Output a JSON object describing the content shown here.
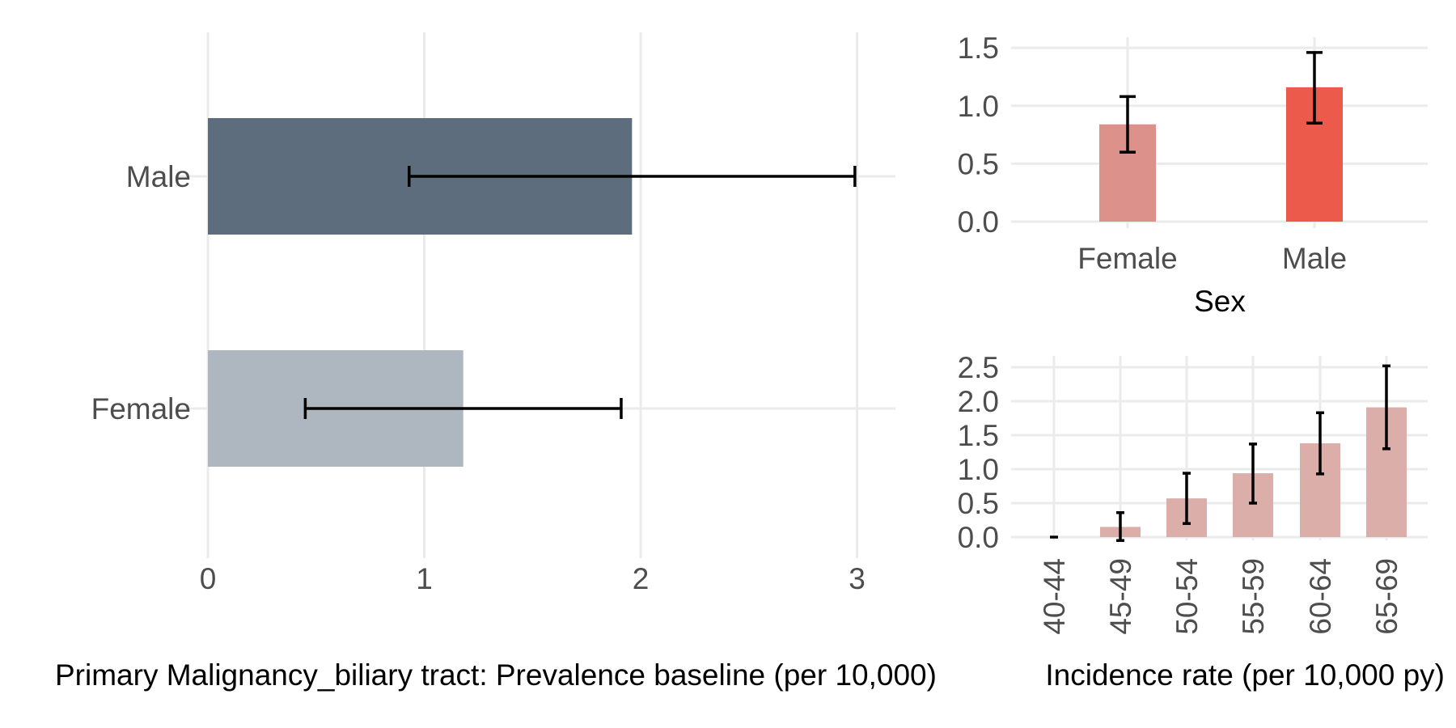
{
  "colors": {
    "prev_male": "#5d6d7e",
    "prev_female": "#aeb6bf",
    "sex_female": "#dc918a",
    "sex_male": "#eb5a4b",
    "age_bars": "#dcaeaa",
    "error_bar": "#000000",
    "grid": "#ebebeb"
  },
  "chart_data": [
    {
      "type": "bar",
      "orientation": "horizontal",
      "title": "",
      "xlabel": "Primary Malignancy_biliary tract: Prevalence baseline (per 10,000)",
      "ylabel": "",
      "categories": [
        "Female",
        "Male"
      ],
      "values": [
        1.18,
        1.96
      ],
      "ci_low": [
        0.45,
        0.93
      ],
      "ci_high": [
        1.91,
        2.99
      ],
      "xlim": [
        0,
        3.14
      ],
      "xticks": [
        "0",
        "1",
        "2",
        "3"
      ],
      "grid": true,
      "legend": "none"
    },
    {
      "type": "bar",
      "title": "",
      "xlabel": "Sex",
      "ylabel": "",
      "categories": [
        "Female",
        "Male"
      ],
      "values": [
        0.84,
        1.16
      ],
      "ci_low": [
        0.6,
        0.85
      ],
      "ci_high": [
        1.08,
        1.46
      ],
      "ylim": [
        0,
        1.55
      ],
      "yticks": [
        "0.0",
        "0.5",
        "1.0",
        "1.5"
      ],
      "grid": true,
      "legend": "none"
    },
    {
      "type": "bar",
      "title": "",
      "xlabel": "Incidence rate (per 10,000 py)",
      "ylabel": "",
      "categories": [
        "40-44",
        "45-49",
        "50-54",
        "55-59",
        "60-64",
        "65-69"
      ],
      "values": [
        0.0,
        0.15,
        0.57,
        0.94,
        1.38,
        1.91
      ],
      "ci_low": [
        0.0,
        -0.05,
        0.2,
        0.5,
        0.93,
        1.3
      ],
      "ci_high": [
        0.0,
        0.36,
        0.94,
        1.37,
        1.83,
        2.52
      ],
      "ylim": [
        -0.05,
        2.6
      ],
      "yticks": [
        "0.0",
        "0.5",
        "1.0",
        "1.5",
        "2.0",
        "2.5"
      ],
      "grid": true,
      "legend": "none"
    }
  ]
}
